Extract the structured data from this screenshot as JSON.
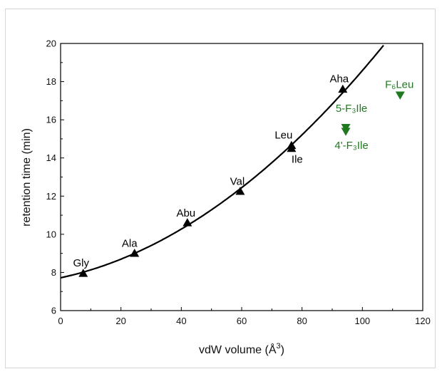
{
  "chart_data": {
    "type": "scatter",
    "xlabel": "vdW volume (Å³)",
    "xlabel_parts": {
      "main": "vdW volume (Å",
      "sup": "3",
      "close": ")"
    },
    "ylabel": "retention time (min)",
    "xlim": [
      0,
      120
    ],
    "ylim": [
      6,
      20
    ],
    "xticks": [
      0,
      20,
      40,
      60,
      80,
      100,
      120
    ],
    "yticks": [
      6,
      8,
      10,
      12,
      14,
      16,
      18,
      20
    ],
    "grid": false,
    "colors": {
      "black": "#000000",
      "green": "#1f7a1f"
    },
    "series": [
      {
        "marker": "triangle-up",
        "color": "#000000",
        "points": [
          {
            "label": "Gly",
            "x": 7.5,
            "y": 7.95
          },
          {
            "label": "Ala",
            "x": 24.5,
            "y": 9.0
          },
          {
            "label": "Abu",
            "x": 42.0,
            "y": 10.6
          },
          {
            "label": "Val",
            "x": 59.5,
            "y": 12.25
          },
          {
            "label": "Leu",
            "x": 76.5,
            "y": 14.65
          },
          {
            "label": "Ile",
            "x": 76.5,
            "y": 14.5
          },
          {
            "label": "Aha",
            "x": 93.5,
            "y": 17.6
          }
        ]
      },
      {
        "marker": "triangle-down",
        "color": "#1f7a1f",
        "points": [
          {
            "label": "5-F₃Ile",
            "x": 94.5,
            "y": 15.6
          },
          {
            "label": "4'-F₃Ile",
            "x": 94.5,
            "y": 15.4
          },
          {
            "label": "F₆Leu",
            "x": 112.5,
            "y": 17.3
          }
        ]
      }
    ],
    "fit_curve": {
      "type": "quadratic",
      "color": "#000000",
      "coefficients": [
        7.72,
        0.0339,
        0.000747
      ],
      "x_range": [
        0,
        107
      ]
    }
  }
}
